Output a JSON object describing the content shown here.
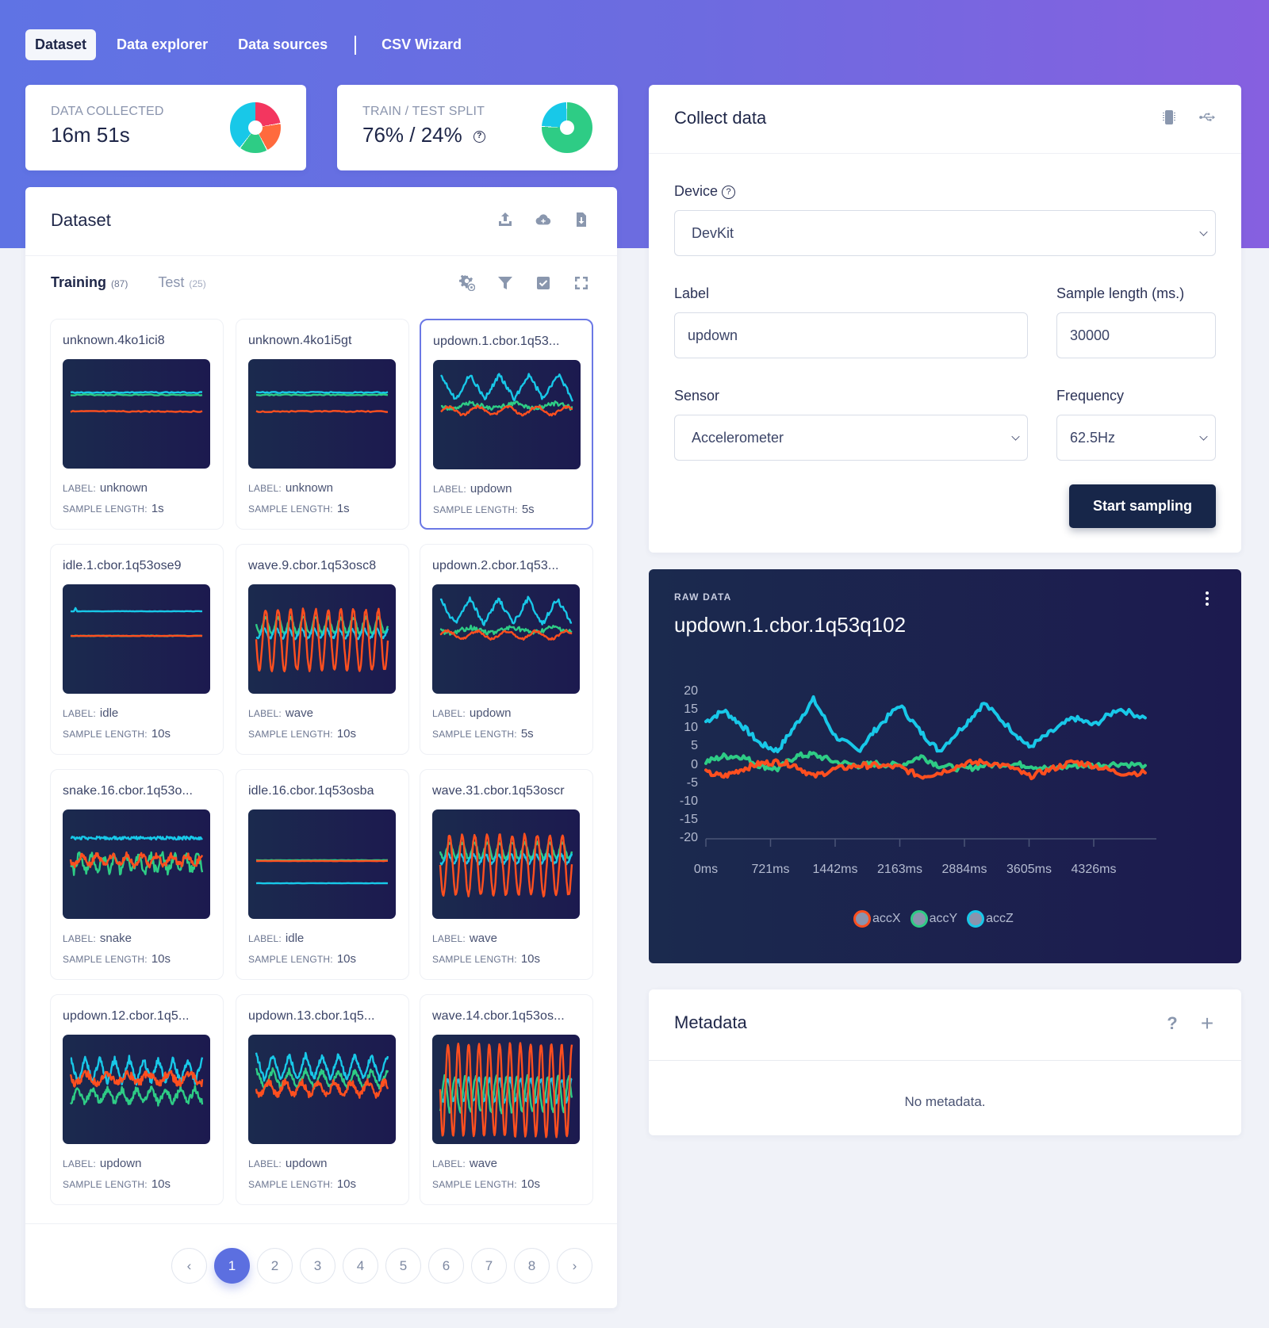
{
  "nav": {
    "tabs": [
      {
        "label": "Dataset",
        "active": true
      },
      {
        "label": "Data explorer",
        "active": false
      },
      {
        "label": "Data sources",
        "active": false
      },
      {
        "label": "CSV Wizard",
        "active": false
      }
    ]
  },
  "stats": {
    "collected": {
      "label": "DATA COLLECTED",
      "value": "16m 51s"
    },
    "split": {
      "label": "TRAIN / TEST SPLIT",
      "value": "76% / 24%",
      "train_pct": 76,
      "test_pct": 24
    }
  },
  "dataset": {
    "title": "Dataset",
    "header_icons": [
      "upload-icon",
      "cloud-add-icon",
      "file-download-icon"
    ],
    "tabs": [
      {
        "label": "Training",
        "count": "(87)",
        "active": true
      },
      {
        "label": "Test",
        "count": "(25)",
        "active": false
      }
    ],
    "toolbar_icons": [
      "settings-eye-icon",
      "filter-icon",
      "select-checkbox-icon",
      "expand-icon"
    ],
    "label_key": "LABEL:",
    "length_key": "SAMPLE LENGTH:",
    "samples": [
      {
        "name": "unknown.4ko1ici8",
        "label": "unknown",
        "length": "1s",
        "pattern": "flat"
      },
      {
        "name": "unknown.4ko1i5gt",
        "label": "unknown",
        "length": "1s",
        "pattern": "flat"
      },
      {
        "name": "updown.1.cbor.1q53...",
        "label": "updown",
        "length": "5s",
        "pattern": "updown",
        "selected": true
      },
      {
        "name": "idle.1.cbor.1q53ose9",
        "label": "idle",
        "length": "10s",
        "pattern": "idle"
      },
      {
        "name": "wave.9.cbor.1q53osc8",
        "label": "wave",
        "length": "10s",
        "pattern": "wave"
      },
      {
        "name": "updown.2.cbor.1q53...",
        "label": "updown",
        "length": "5s",
        "pattern": "updown"
      },
      {
        "name": "snake.16.cbor.1q53o...",
        "label": "snake",
        "length": "10s",
        "pattern": "snake"
      },
      {
        "name": "idle.16.cbor.1q53osba",
        "label": "idle",
        "length": "10s",
        "pattern": "idle2"
      },
      {
        "name": "wave.31.cbor.1q53oscr",
        "label": "wave",
        "length": "10s",
        "pattern": "wave"
      },
      {
        "name": "updown.12.cbor.1q5...",
        "label": "updown",
        "length": "10s",
        "pattern": "updownfast"
      },
      {
        "name": "updown.13.cbor.1q5...",
        "label": "updown",
        "length": "10s",
        "pattern": "updownfast2"
      },
      {
        "name": "wave.14.cbor.1q53os...",
        "label": "wave",
        "length": "10s",
        "pattern": "wavefast"
      }
    ],
    "pagination": {
      "prev": "‹",
      "next": "›",
      "pages": [
        "1",
        "2",
        "3",
        "4",
        "5",
        "6",
        "7",
        "8"
      ],
      "current": "1"
    }
  },
  "collect": {
    "title": "Collect data",
    "header_icons": [
      "chip-icon",
      "usb-icon"
    ],
    "device_label": "Device",
    "device_value": "DevKit",
    "label_label": "Label",
    "label_value": "updown",
    "length_label": "Sample length (ms.)",
    "length_value": "30000",
    "sensor_label": "Sensor",
    "sensor_value": "Accelerometer",
    "freq_label": "Frequency",
    "freq_value": "62.5Hz",
    "start_button": "Start sampling"
  },
  "raw": {
    "eyebrow": "RAW DATA",
    "title": "updown.1.cbor.1q53q102"
  },
  "metadata": {
    "title": "Metadata",
    "empty": "No metadata."
  },
  "colors": {
    "accX": "#ff4f1f",
    "accY": "#2ecc85",
    "accZ": "#18c8e8",
    "primary": "#5c6fe0",
    "dark": "#172649"
  },
  "chart_data": {
    "type": "line",
    "title": "updown.1.cbor.1q53q102",
    "xlabel": "",
    "ylabel": "",
    "ylim": [
      -20,
      20
    ],
    "yticks": [
      "20",
      "15",
      "10",
      "5",
      "0",
      "-5",
      "-10",
      "-15",
      "-20"
    ],
    "xticks": [
      "0ms",
      "721ms",
      "1442ms",
      "2163ms",
      "2884ms",
      "3605ms",
      "4326ms"
    ],
    "x": [
      0,
      200,
      400,
      600,
      800,
      1000,
      1200,
      1442,
      1700,
      1900,
      2163,
      2400,
      2600,
      2884,
      3100,
      3400,
      3605,
      3850,
      4100,
      4326,
      4600,
      4900
    ],
    "series": [
      {
        "name": "accX",
        "color": "#ff4f1f",
        "values": [
          -2,
          -3,
          -1,
          0.5,
          1,
          0,
          -3,
          -1,
          0,
          0,
          -0.5,
          -3,
          -2,
          0.5,
          1,
          -0.5,
          -3,
          -1,
          1,
          0,
          -2,
          -2
        ]
      },
      {
        "name": "accY",
        "color": "#2ecc85",
        "values": [
          1,
          2.5,
          2.5,
          0,
          -1,
          2.5,
          3,
          1,
          0,
          0.5,
          0,
          2.5,
          0,
          -1,
          0,
          0.5,
          0,
          -1,
          0,
          0,
          0.5,
          0
        ]
      },
      {
        "name": "accZ",
        "color": "#18c8e8",
        "values": [
          12,
          15,
          11,
          6,
          4,
          11,
          18,
          8,
          4,
          10,
          16.5,
          9,
          4,
          11,
          17,
          10,
          5,
          9,
          13,
          11,
          15.5,
          13
        ]
      }
    ],
    "legend": [
      "accX",
      "accY",
      "accZ"
    ],
    "legend_position": "bottom",
    "grid": false
  }
}
